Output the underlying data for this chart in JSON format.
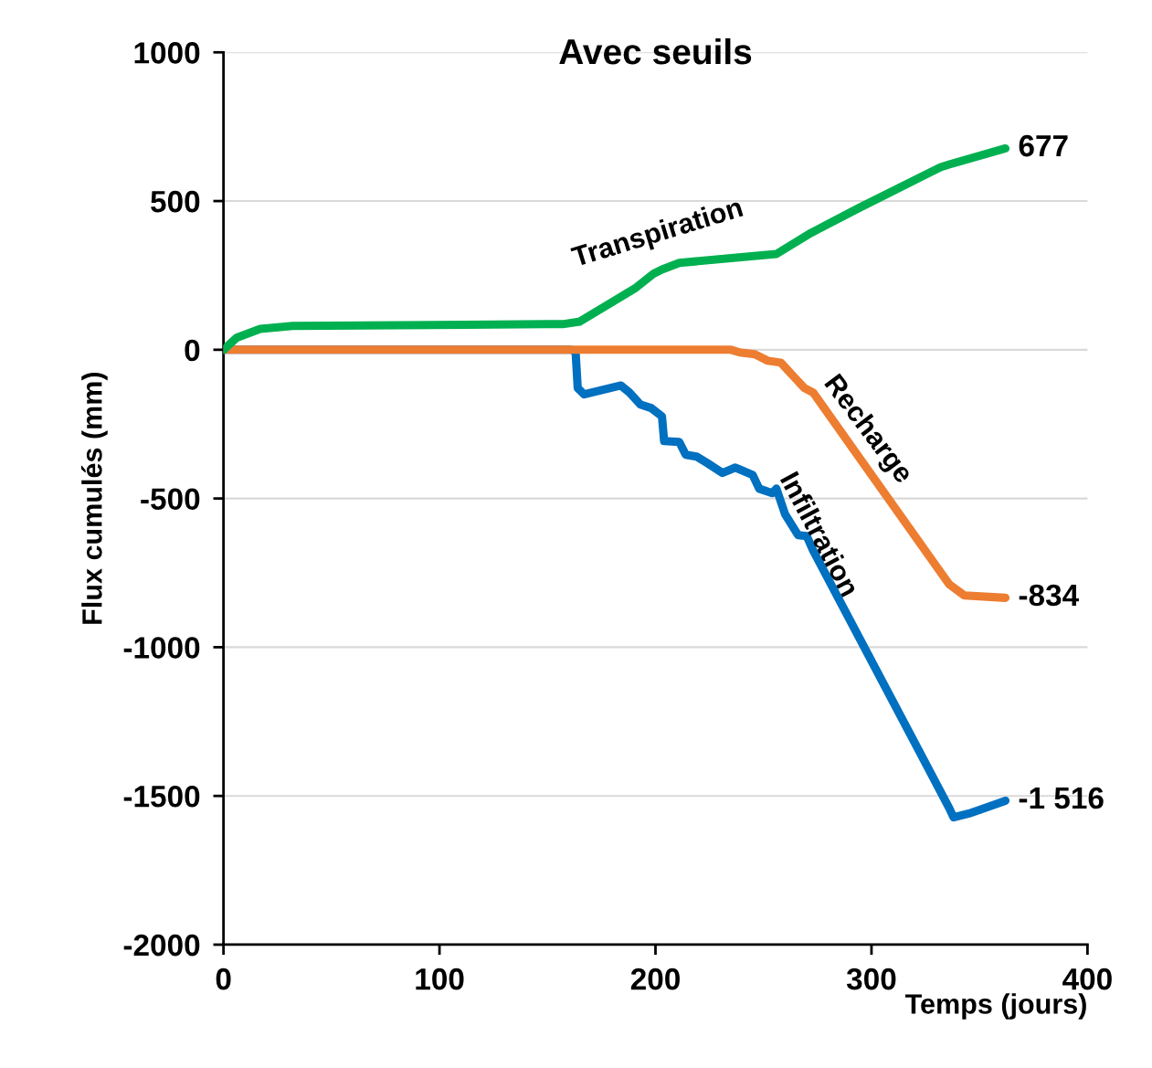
{
  "chart_data": {
    "type": "line",
    "title": "Avec seuils",
    "xlabel": "Temps (jours)",
    "ylabel": "Flux cumulés (mm)",
    "xlim": [
      0,
      400
    ],
    "xticks": [
      0,
      100,
      200,
      300,
      400
    ],
    "ylim": [
      -2000,
      1000
    ],
    "yticks": [
      -2000,
      -1500,
      -1000,
      -500,
      0,
      500,
      1000
    ],
    "grid": "y",
    "legend": false,
    "marker": "none",
    "line_style": "solid",
    "series": [
      {
        "name": "Transpiration",
        "color": "#00b050",
        "x": [
          0,
          6,
          17,
          32,
          150,
          157,
          165,
          184,
          191,
          199,
          203,
          211,
          256,
          272,
          294,
          332,
          336,
          362
        ],
        "values": [
          0,
          40,
          70,
          80,
          86,
          86,
          95,
          178,
          209,
          255,
          270,
          292,
          322,
          393,
          476,
          614,
          623,
          677
        ],
        "value_labels": [
          null,
          null,
          null,
          null,
          null,
          null,
          null,
          null,
          null,
          null,
          null,
          null,
          null,
          null,
          null,
          null,
          null,
          "677"
        ]
      },
      {
        "name": "Recharge",
        "color": "#ed7d31",
        "x": [
          0,
          235,
          239,
          246,
          252,
          258,
          265,
          269,
          273,
          336,
          343,
          362
        ],
        "values": [
          0,
          0,
          -9,
          -15,
          -37,
          -43,
          -98,
          -129,
          -144,
          -789,
          -826,
          -834
        ],
        "value_labels": [
          null,
          null,
          null,
          null,
          null,
          null,
          null,
          null,
          null,
          null,
          null,
          "-834"
        ]
      },
      {
        "name": "Infiltration",
        "color": "#0070c0",
        "x": [
          0,
          161,
          163,
          164,
          167,
          184,
          188,
          193,
          198,
          203,
          204,
          211,
          214,
          219,
          224,
          231,
          237,
          245,
          248,
          254,
          256,
          260,
          266,
          270,
          273,
          336,
          338,
          346,
          350,
          362
        ],
        "values": [
          0,
          0,
          -6,
          -129,
          -150,
          -120,
          -144,
          -184,
          -196,
          -224,
          -307,
          -310,
          -353,
          -359,
          -381,
          -414,
          -396,
          -421,
          -467,
          -482,
          -467,
          -553,
          -623,
          -626,
          -675,
          -1541,
          -1572,
          -1557,
          -1547,
          -1516
        ],
        "value_labels": [
          null,
          null,
          null,
          null,
          null,
          null,
          null,
          null,
          null,
          null,
          null,
          null,
          null,
          null,
          null,
          null,
          null,
          null,
          null,
          null,
          null,
          null,
          null,
          null,
          null,
          null,
          null,
          null,
          null,
          "-1 516"
        ]
      }
    ]
  }
}
